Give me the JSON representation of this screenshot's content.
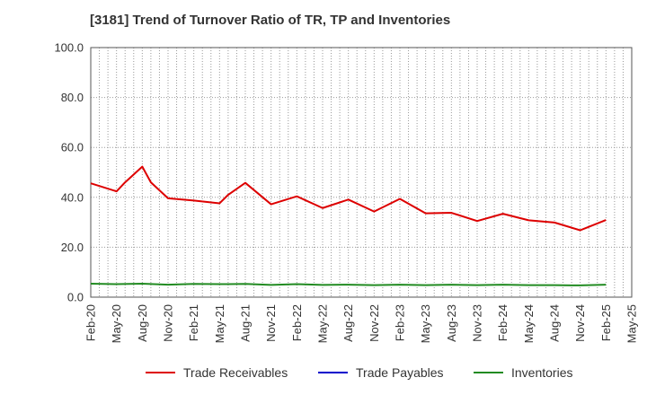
{
  "chart_data": {
    "type": "line",
    "title": "[3181]  Trend of Turnover Ratio of TR, TP and Inventories",
    "xlabel": "",
    "ylabel": "",
    "ylim": [
      0,
      100
    ],
    "yticks": [
      "0.0",
      "20.0",
      "40.0",
      "60.0",
      "80.0",
      "100.0"
    ],
    "grid": true,
    "legend_position": "bottom",
    "x_tick_labels": [
      "Feb-20",
      "May-20",
      "Aug-20",
      "Nov-20",
      "Feb-21",
      "May-21",
      "Aug-21",
      "Nov-21",
      "Feb-22",
      "May-22",
      "Aug-22",
      "Nov-22",
      "Feb-23",
      "May-23",
      "Aug-23",
      "Nov-23",
      "Feb-24",
      "May-24",
      "Aug-24",
      "Nov-24",
      "Feb-25",
      "May-25"
    ],
    "x_months": [
      "2020-02",
      "2020-03",
      "2020-04",
      "2020-05",
      "2020-06",
      "2020-07",
      "2020-08",
      "2020-09",
      "2020-10",
      "2020-11",
      "2020-12",
      "2021-01",
      "2021-02",
      "2021-03",
      "2021-04",
      "2021-05",
      "2021-06",
      "2021-07",
      "2021-08",
      "2021-09",
      "2021-10",
      "2021-11",
      "2021-12",
      "2022-01",
      "2022-02",
      "2022-03",
      "2022-04",
      "2022-05",
      "2022-06",
      "2022-07",
      "2022-08",
      "2022-09",
      "2022-10",
      "2022-11",
      "2022-12",
      "2023-01",
      "2023-02",
      "2023-03",
      "2023-04",
      "2023-05",
      "2023-06",
      "2023-07",
      "2023-08",
      "2023-09",
      "2023-10",
      "2023-11",
      "2023-12",
      "2024-01",
      "2024-02",
      "2024-03",
      "2024-04",
      "2024-05",
      "2024-06",
      "2024-07",
      "2024-08",
      "2024-09",
      "2024-10",
      "2024-11",
      "2024-12",
      "2025-01",
      "2025-02",
      "2025-03",
      "2025-04",
      "2025-05"
    ],
    "series": [
      {
        "name": "Trade Receivables",
        "color": "#dd0000",
        "points": [
          [
            "2020-02",
            45.6
          ],
          [
            "2020-05",
            42.4
          ],
          [
            "2020-06",
            46.0
          ],
          [
            "2020-08",
            52.3
          ],
          [
            "2020-09",
            46.0
          ],
          [
            "2020-11",
            39.6
          ],
          [
            "2021-02",
            38.7
          ],
          [
            "2021-05",
            37.6
          ],
          [
            "2021-06",
            41.0
          ],
          [
            "2021-08",
            45.8
          ],
          [
            "2021-11",
            37.2
          ],
          [
            "2022-02",
            40.4
          ],
          [
            "2022-05",
            35.7
          ],
          [
            "2022-08",
            39.1
          ],
          [
            "2022-11",
            34.3
          ],
          [
            "2023-02",
            39.4
          ],
          [
            "2023-05",
            33.6
          ],
          [
            "2023-08",
            33.8
          ],
          [
            "2023-11",
            30.5
          ],
          [
            "2024-02",
            33.4
          ],
          [
            "2024-05",
            30.8
          ],
          [
            "2024-08",
            29.9
          ],
          [
            "2024-11",
            26.8
          ],
          [
            "2025-02",
            30.9
          ]
        ]
      },
      {
        "name": "Trade Payables",
        "color": "#0000cc",
        "points": []
      },
      {
        "name": "Inventories",
        "color": "#228b22",
        "points": [
          [
            "2020-02",
            5.4
          ],
          [
            "2020-05",
            5.2
          ],
          [
            "2020-08",
            5.4
          ],
          [
            "2020-11",
            5.0
          ],
          [
            "2021-02",
            5.3
          ],
          [
            "2021-05",
            5.2
          ],
          [
            "2021-08",
            5.3
          ],
          [
            "2021-11",
            4.9
          ],
          [
            "2022-02",
            5.2
          ],
          [
            "2022-05",
            4.9
          ],
          [
            "2022-08",
            5.0
          ],
          [
            "2022-11",
            4.8
          ],
          [
            "2023-02",
            5.0
          ],
          [
            "2023-05",
            4.8
          ],
          [
            "2023-08",
            5.0
          ],
          [
            "2023-11",
            4.8
          ],
          [
            "2024-02",
            5.0
          ],
          [
            "2024-05",
            4.8
          ],
          [
            "2024-08",
            4.8
          ],
          [
            "2024-11",
            4.7
          ],
          [
            "2025-02",
            5.0
          ]
        ]
      }
    ]
  }
}
